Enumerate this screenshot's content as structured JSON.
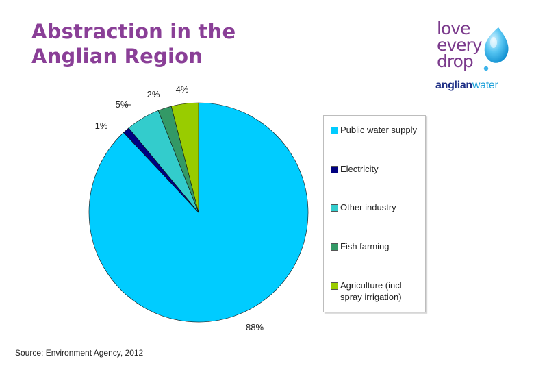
{
  "title_lines": [
    "Abstraction in the",
    "Anglian Region"
  ],
  "logo": {
    "lines": [
      "love",
      "every",
      "drop"
    ],
    "brand_a": "anglian",
    "brand_b": "water"
  },
  "chart_data": {
    "type": "pie",
    "slices": [
      {
        "label": "Public water supply",
        "value": 88,
        "display": "88%",
        "color": "#00ccff"
      },
      {
        "label": "Electricity",
        "value": 1,
        "display": "1%",
        "color": "#000080"
      },
      {
        "label": "Other industry",
        "value": 5,
        "display": "5%",
        "color": "#33cccc"
      },
      {
        "label": "Fish farming",
        "value": 2,
        "display": "2%",
        "color": "#339966"
      },
      {
        "label": "Agriculture (incl spray irrigation)",
        "value": 4,
        "display": "4%",
        "color": "#99cc00"
      }
    ],
    "legend_position": "right"
  },
  "source": "Source: Environment Agency, 2012"
}
